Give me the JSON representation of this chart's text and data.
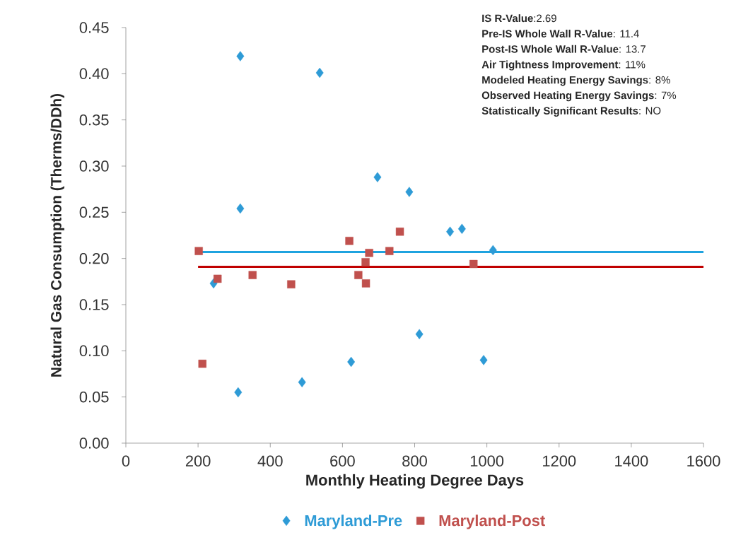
{
  "chart_data": {
    "type": "scatter",
    "xlabel": "Monthly Heating Degree Days",
    "ylabel": "Natural Gas Consumption (Therms/DDh)",
    "xlim": [
      0,
      1600
    ],
    "xticks": [
      0,
      200,
      400,
      600,
      800,
      1000,
      1200,
      1400,
      1600
    ],
    "ylim": [
      0,
      0.45
    ],
    "yticks": [
      {
        "value": 0,
        "label": "0.00"
      },
      {
        "value": 0.05,
        "label": "0.05"
      },
      {
        "value": 0.1,
        "label": "0.10"
      },
      {
        "value": 0.15,
        "label": "0.15"
      },
      {
        "value": 0.2,
        "label": "0.20"
      },
      {
        "value": 0.25,
        "label": "0.25"
      },
      {
        "value": 0.3,
        "label": "0.30"
      },
      {
        "value": 0.35,
        "label": "0.35"
      },
      {
        "value": 0.4,
        "label": "0.40"
      },
      {
        "value": 0.45,
        "label": "0.45"
      }
    ],
    "grid": false,
    "legend": "bottom",
    "series": [
      {
        "name": "Maryland-Pre",
        "type": "scatter",
        "marker": "diamond",
        "color": "#2e9bd6",
        "x": [
          317,
          537,
          697,
          785,
          317,
          243,
          813,
          624,
          488,
          311,
          898,
          931,
          1017,
          991
        ],
        "values": [
          0.419,
          0.401,
          0.288,
          0.272,
          0.254,
          0.173,
          0.118,
          0.088,
          0.066,
          0.055,
          0.229,
          0.232,
          0.209,
          0.09
        ]
      },
      {
        "name": "Maryland-Post",
        "type": "scatter",
        "marker": "square",
        "color": "#c0504d",
        "x": [
          202,
          254,
          351,
          458,
          212,
          619,
          674,
          664,
          644,
          665,
          730,
          759,
          963
        ],
        "values": [
          0.208,
          0.178,
          0.182,
          0.172,
          0.086,
          0.219,
          0.206,
          0.196,
          0.182,
          0.173,
          0.208,
          0.229,
          0.194
        ]
      },
      {
        "type": "line",
        "marker": "none",
        "color": "#1fa3df",
        "x": [
          200,
          1600
        ],
        "values": [
          0.207,
          0.207
        ]
      },
      {
        "type": "line",
        "marker": "none",
        "color": "#c00000",
        "x": [
          200,
          1600
        ],
        "values": [
          0.191,
          0.191
        ]
      }
    ],
    "annotations": [
      "**IS R-Value**:2.69",
      "**Pre-IS Whole Wall R-Value**: 11.4",
      "**Post-IS Whole Wall R-Value**: 13.7",
      "**Air Tightness Improvement**: 11%",
      "**Modeled Heating Energy Savings**: 8%",
      "**Observed Heating Energy Savings**: 7%",
      "**Statistically Significant Results**: NO"
    ]
  }
}
